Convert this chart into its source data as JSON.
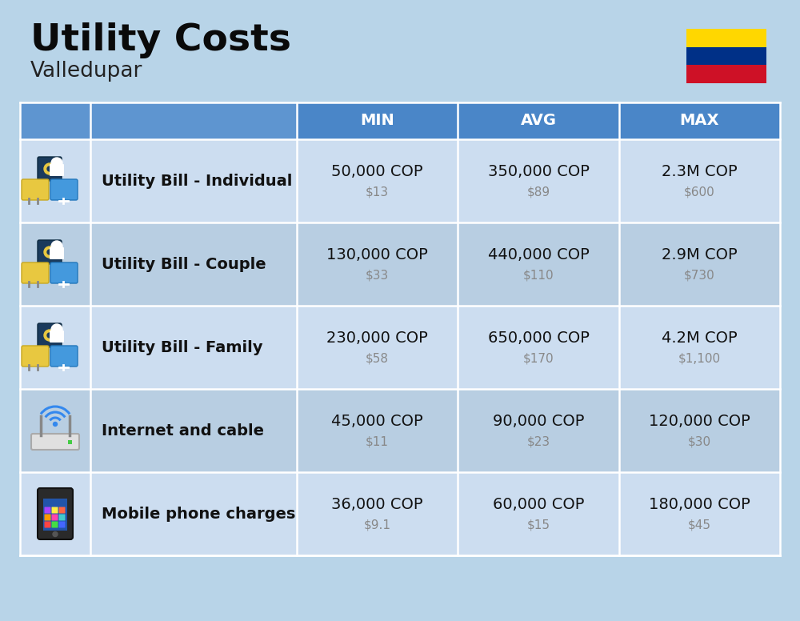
{
  "title": "Utility Costs",
  "subtitle": "Valledupar",
  "background_color": "#b8d4e8",
  "header_bg_color": "#4a86c8",
  "header_text_color": "#ffffff",
  "row_bg_color_light": "#ccddf0",
  "row_bg_color_dark": "#b8cee2",
  "col_headers": [
    "MIN",
    "AVG",
    "MAX"
  ],
  "rows": [
    {
      "label": "Utility Bill - Individual",
      "min_cop": "50,000 COP",
      "min_usd": "$13",
      "avg_cop": "350,000 COP",
      "avg_usd": "$89",
      "max_cop": "2.3M COP",
      "max_usd": "$600"
    },
    {
      "label": "Utility Bill - Couple",
      "min_cop": "130,000 COP",
      "min_usd": "$33",
      "avg_cop": "440,000 COP",
      "avg_usd": "$110",
      "max_cop": "2.9M COP",
      "max_usd": "$730"
    },
    {
      "label": "Utility Bill - Family",
      "min_cop": "230,000 COP",
      "min_usd": "$58",
      "avg_cop": "650,000 COP",
      "avg_usd": "$170",
      "max_cop": "4.2M COP",
      "max_usd": "$1,100"
    },
    {
      "label": "Internet and cable",
      "min_cop": "45,000 COP",
      "min_usd": "$11",
      "avg_cop": "90,000 COP",
      "avg_usd": "$23",
      "max_cop": "120,000 COP",
      "max_usd": "$30"
    },
    {
      "label": "Mobile phone charges",
      "min_cop": "36,000 COP",
      "min_usd": "$9.1",
      "avg_cop": "60,000 COP",
      "avg_usd": "$15",
      "max_cop": "180,000 COP",
      "max_usd": "$45"
    }
  ],
  "flag_colors": [
    "#FFD700",
    "#003087",
    "#CE1126"
  ],
  "cop_fontsize": 14,
  "usd_fontsize": 11,
  "label_fontsize": 14,
  "header_fontsize": 14
}
